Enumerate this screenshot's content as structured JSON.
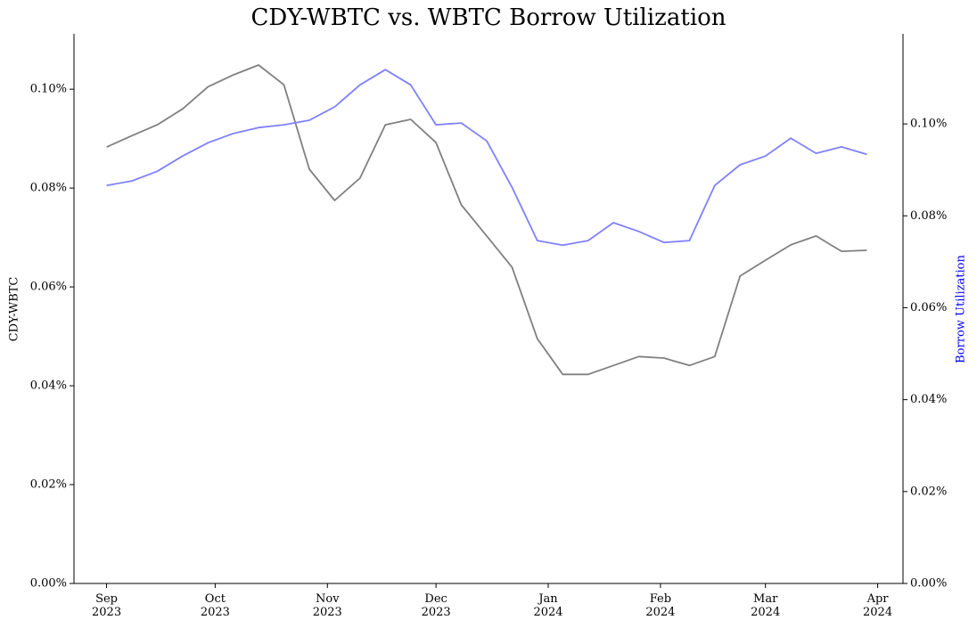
{
  "chart_data": {
    "type": "line",
    "title": "CDY-WBTC vs. WBTC Borrow Utilization",
    "ylabel": "CDY-WBTC",
    "y2label": "Borrow Utilization",
    "y2label_color": "#0000ff",
    "x": [
      "2023-09-01",
      "2023-09-08",
      "2023-09-15",
      "2023-09-22",
      "2023-09-29",
      "2023-10-06",
      "2023-10-13",
      "2023-10-20",
      "2023-10-27",
      "2023-11-03",
      "2023-11-10",
      "2023-11-17",
      "2023-11-24",
      "2023-12-01",
      "2023-12-08",
      "2023-12-15",
      "2023-12-22",
      "2023-12-29",
      "2024-01-05",
      "2024-01-12",
      "2024-01-19",
      "2024-01-26",
      "2024-02-02",
      "2024-02-09",
      "2024-02-16",
      "2024-02-23",
      "2024-03-01",
      "2024-03-08",
      "2024-03-15",
      "2024-03-22",
      "2024-03-29"
    ],
    "series": [
      {
        "name": "CDY-WBTC",
        "color": "#808080",
        "axis": "y",
        "values": [
          0.0883,
          0.0906,
          0.0928,
          0.096,
          0.1005,
          0.1029,
          0.1049,
          0.1009,
          0.0838,
          0.0775,
          0.082,
          0.0928,
          0.0939,
          0.0892,
          0.0766,
          0.0703,
          0.064,
          0.0495,
          0.0423,
          0.0423,
          0.0441,
          0.0459,
          0.0456,
          0.0441,
          0.0459,
          0.0622,
          0.0654,
          0.0685,
          0.0703,
          0.0672,
          0.0674
        ]
      },
      {
        "name": "Borrow Utilization",
        "color": "#8080ff",
        "axis": "y2",
        "values": [
          0.0866,
          0.0876,
          0.0897,
          0.093,
          0.0959,
          0.0979,
          0.0992,
          0.0998,
          0.1008,
          0.1037,
          0.1085,
          0.1118,
          0.1085,
          0.0998,
          0.1002,
          0.0963,
          0.0862,
          0.0746,
          0.0736,
          0.0746,
          0.0785,
          0.0766,
          0.0742,
          0.0746,
          0.0866,
          0.0911,
          0.093,
          0.0969,
          0.0936,
          0.095,
          0.0934
        ]
      }
    ],
    "xlim": [
      "2023-08-23",
      "2024-04-08"
    ],
    "xticks": [
      {
        "value": "2023-09-01",
        "label": [
          "Sep",
          "2023"
        ]
      },
      {
        "value": "2023-10-01",
        "label": [
          "Oct",
          "2023"
        ]
      },
      {
        "value": "2023-11-01",
        "label": [
          "Nov",
          "2023"
        ]
      },
      {
        "value": "2023-12-01",
        "label": [
          "Dec",
          "2023"
        ]
      },
      {
        "value": "2024-01-01",
        "label": [
          "Jan",
          "2024"
        ]
      },
      {
        "value": "2024-02-01",
        "label": [
          "Feb",
          "2024"
        ]
      },
      {
        "value": "2024-03-01",
        "label": [
          "Mar",
          "2024"
        ]
      },
      {
        "value": "2024-04-01",
        "label": [
          "Apr",
          "2024"
        ]
      }
    ],
    "ylim": [
      0,
      0.1112
    ],
    "yticks": [
      {
        "value": 0,
        "label": "0.00%"
      },
      {
        "value": 0.02,
        "label": "0.02%"
      },
      {
        "value": 0.04,
        "label": "0.04%"
      },
      {
        "value": 0.06,
        "label": "0.06%"
      },
      {
        "value": 0.08,
        "label": "0.08%"
      },
      {
        "value": 0.1,
        "label": "0.10%"
      }
    ],
    "y2lim": [
      0,
      0.1196
    ],
    "y2ticks": [
      {
        "value": 0,
        "label": "0.00%"
      },
      {
        "value": 0.02,
        "label": "0.02%"
      },
      {
        "value": 0.04,
        "label": "0.04%"
      },
      {
        "value": 0.06,
        "label": "0.06%"
      },
      {
        "value": 0.08,
        "label": "0.08%"
      },
      {
        "value": 0.1,
        "label": "0.10%"
      }
    ]
  }
}
